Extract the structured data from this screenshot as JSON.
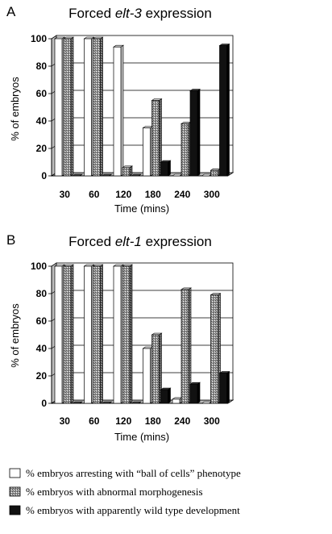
{
  "figure": {
    "legend": [
      {
        "key": "ball",
        "label": "% embryos arresting with “ball of cells” phenotype"
      },
      {
        "key": "abnormal",
        "label": "% embryos with abnormal morphogenesis"
      },
      {
        "key": "wild",
        "label": "% embryos with apparently wild type development"
      }
    ]
  },
  "chart_data": [
    {
      "type": "bar",
      "panel": "A",
      "title_prefix": "Forced ",
      "title_gene": "elt-3",
      "title_suffix": " expression",
      "xlabel": "Time (mins)",
      "ylabel": "% of embryos",
      "ylim": [
        0,
        100
      ],
      "yticks": [
        0,
        20,
        40,
        60,
        80,
        100
      ],
      "grid": true,
      "categories": [
        "30",
        "60",
        "120",
        "180",
        "240",
        "300"
      ],
      "series": [
        {
          "name": "% embryos arresting with “ball of cells” phenotype",
          "key": "ball",
          "values": [
            100,
            100,
            94,
            35,
            0,
            0
          ]
        },
        {
          "name": "% embryos with abnormal morphogenesis",
          "key": "abnormal",
          "values": [
            100,
            100,
            6,
            55,
            38,
            4
          ]
        },
        {
          "name": "% embryos with apparently wild type development",
          "key": "wild",
          "values": [
            0,
            0,
            0,
            10,
            62,
            95
          ]
        }
      ]
    },
    {
      "type": "bar",
      "panel": "B",
      "title_prefix": "Forced ",
      "title_gene": "elt-1",
      "title_suffix": " expression",
      "xlabel": "Time (mins)",
      "ylabel": "% of embryos",
      "ylim": [
        0,
        100
      ],
      "yticks": [
        0,
        20,
        40,
        60,
        80,
        100
      ],
      "grid": true,
      "categories": [
        "30",
        "60",
        "120",
        "180",
        "240",
        "300"
      ],
      "series": [
        {
          "name": "% embryos arresting with “ball of cells” phenotype",
          "key": "ball",
          "values": [
            100,
            100,
            100,
            40,
            3,
            0
          ]
        },
        {
          "name": "% embryos with abnormal morphogenesis",
          "key": "abnormal",
          "values": [
            100,
            100,
            100,
            50,
            83,
            79
          ]
        },
        {
          "name": "% embryos with apparently wild type development",
          "key": "wild",
          "values": [
            0,
            0,
            0,
            10,
            14,
            22
          ]
        }
      ]
    }
  ]
}
